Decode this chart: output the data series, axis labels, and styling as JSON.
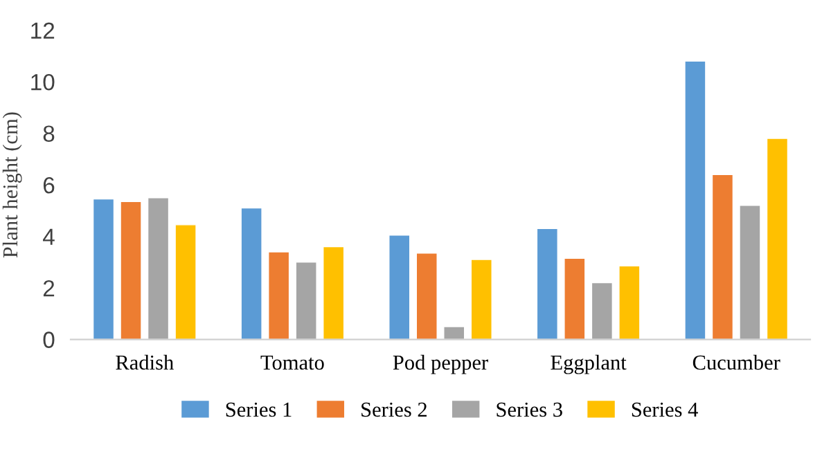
{
  "chart_data": {
    "type": "bar",
    "ylabel": "Plant height (cm)",
    "categories": [
      "Radish",
      "Tomato",
      "Pod pepper",
      "Eggplant",
      "Cucumber"
    ],
    "series": [
      {
        "name": "Series 1",
        "color": "#5b9bd5",
        "values": [
          5.45,
          5.1,
          4.05,
          4.3,
          10.8
        ]
      },
      {
        "name": "Series 2",
        "color": "#ed7d31",
        "values": [
          5.35,
          3.4,
          3.35,
          3.15,
          6.4
        ]
      },
      {
        "name": "Series 3",
        "color": "#a5a5a5",
        "values": [
          5.5,
          3.0,
          0.5,
          2.2,
          5.2
        ]
      },
      {
        "name": "Series 4",
        "color": "#ffc000",
        "values": [
          4.45,
          3.6,
          3.1,
          2.85,
          7.8
        ]
      }
    ],
    "ylim": [
      0,
      12
    ],
    "yticks": [
      0,
      2,
      4,
      6,
      8,
      10,
      12
    ],
    "grid": false,
    "legend": "bottom"
  }
}
